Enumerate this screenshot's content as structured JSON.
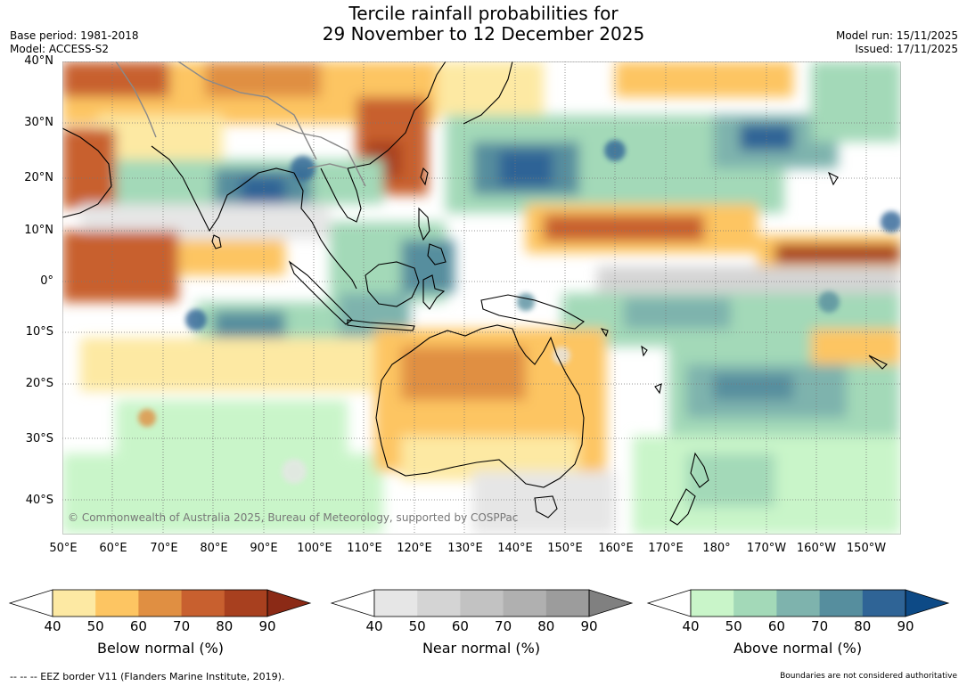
{
  "header": {
    "title_line1": "Tercile rainfall probabilities for",
    "title_line2": "29 November to 12 December 2025",
    "base_period": "Base period: 1981-2018",
    "model": "Model: ACCESS-S2",
    "model_run": "Model run: 15/11/2025",
    "issued": "Issued: 17/11/2025"
  },
  "map": {
    "lat_labels": [
      "40°N",
      "30°N",
      "20°N",
      "10°N",
      "0°",
      "10°S",
      "20°S",
      "30°S",
      "40°S"
    ],
    "lon_labels": [
      "50°E",
      "60°E",
      "70°E",
      "80°E",
      "90°E",
      "100°E",
      "110°E",
      "120°E",
      "130°E",
      "140°E",
      "150°E",
      "160°E",
      "170°E",
      "180°",
      "170°W",
      "160°W",
      "150°W"
    ],
    "copyright": "© Commonwealth of Australia 2025, Bureau of Meteorology, supported by COSPPac"
  },
  "colorbars": [
    {
      "label": "Below normal (%)",
      "ticks": [
        "40",
        "50",
        "60",
        "70",
        "80",
        "90"
      ],
      "colors": [
        "#ffffff",
        "#fde9a3",
        "#fdc562",
        "#e08f42",
        "#c8602f",
        "#a8401f",
        "#8b2a16"
      ]
    },
    {
      "label": "Near normal (%)",
      "ticks": [
        "40",
        "50",
        "60",
        "70",
        "80",
        "90"
      ],
      "colors": [
        "#ffffff",
        "#e6e6e6",
        "#d4d4d4",
        "#c2c2c2",
        "#b0b0b0",
        "#9c9c9c",
        "#808080"
      ]
    },
    {
      "label": "Above normal (%)",
      "ticks": [
        "40",
        "50",
        "60",
        "70",
        "80",
        "90"
      ],
      "colors": [
        "#ffffff",
        "#c9f5c9",
        "#a3d9b8",
        "#7eb3ad",
        "#568e9e",
        "#2f6496",
        "#0d4a86"
      ]
    }
  ],
  "footer": {
    "eez": "--  --  -- EEZ border V11 (Flanders Marine Institute, 2019).",
    "boundaries": "Boundaries are not considered authoritative"
  }
}
